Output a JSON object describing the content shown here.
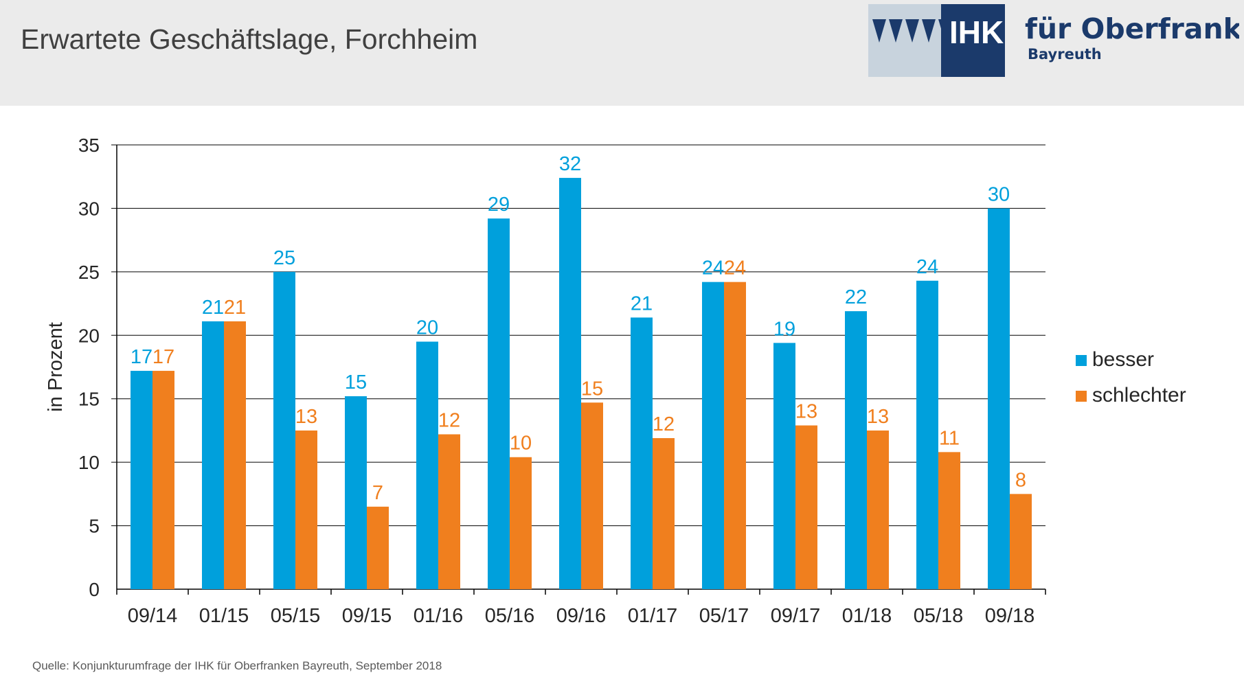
{
  "header": {
    "title": "Erwartete Geschäftslage, Forchheim",
    "logo": {
      "brand": "IHK",
      "name": "für Oberfranken",
      "city": "Bayreuth"
    }
  },
  "source": "Quelle: Konjunkturumfrage der IHK für Oberfranken Bayreuth, September 2018",
  "colors": {
    "besser": "#00a0dc",
    "schlechter": "#f07f1e",
    "header_bg": "#ebebeb",
    "logo_blue": "#1b3a6b",
    "logo_gray": "#c8d3dd"
  },
  "chart_data": {
    "type": "bar",
    "title": "Erwartete Geschäftslage, Forchheim",
    "xlabel": "",
    "ylabel": "in Prozent",
    "ylim": [
      0,
      35
    ],
    "yticks": [
      0,
      5,
      10,
      15,
      20,
      25,
      30,
      35
    ],
    "grid": true,
    "legend_position": "right",
    "categories": [
      "09/14",
      "01/15",
      "05/15",
      "09/15",
      "01/16",
      "05/16",
      "09/16",
      "01/17",
      "05/17",
      "09/17",
      "01/18",
      "05/18",
      "09/18"
    ],
    "series": [
      {
        "name": "besser",
        "color": "#00a0dc",
        "values": [
          17.2,
          21.1,
          25.0,
          15.2,
          19.5,
          29.2,
          32.4,
          21.4,
          24.2,
          19.4,
          21.9,
          24.3,
          30.0
        ],
        "labels": [
          "17",
          "21",
          "25",
          "15",
          "20",
          "29",
          "32",
          "21",
          "24",
          "19",
          "22",
          "24",
          "30"
        ]
      },
      {
        "name": "schlechter",
        "color": "#f07f1e",
        "values": [
          17.2,
          21.1,
          12.5,
          6.5,
          12.2,
          10.4,
          14.7,
          11.9,
          24.2,
          12.9,
          12.5,
          10.8,
          7.5
        ],
        "labels": [
          "17",
          "21",
          "13",
          "7",
          "12",
          "10",
          "15",
          "12",
          "24",
          "13",
          "13",
          "11",
          "8"
        ]
      }
    ]
  }
}
